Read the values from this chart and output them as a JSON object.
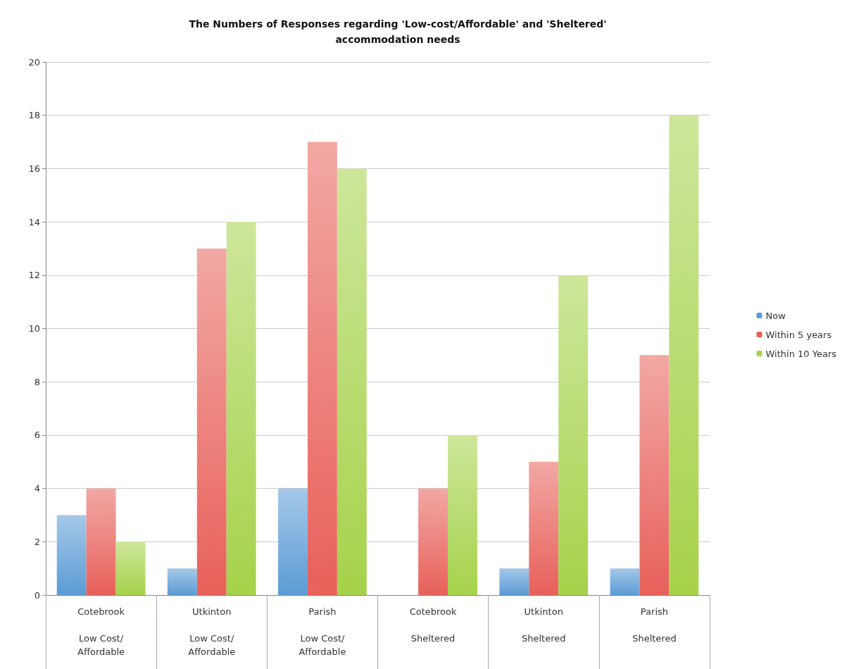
{
  "chart_data": {
    "type": "bar",
    "title": "The Numbers of Responses regarding 'Low-cost/Affordable' and 'Sheltered'\naccommodation needs",
    "categories": [
      "Cotebrook\n\nLow Cost/\nAffordable",
      "Utkinton\n\nLow Cost/\nAffordable",
      "Parish\n\nLow Cost/\nAffordable",
      "Cotebrook\n\nSheltered",
      "Utkinton\n\nSheltered",
      "Parish\n\nSheltered"
    ],
    "series": [
      {
        "name": "Now",
        "color": "#5b9bd5",
        "values": [
          3,
          1,
          4,
          0,
          1,
          1
        ]
      },
      {
        "name": "Within 5 years",
        "color": "#e8605a",
        "values": [
          4,
          13,
          17,
          4,
          5,
          9
        ]
      },
      {
        "name": "Within 10 Years",
        "color": "#a6d24a",
        "values": [
          2,
          14,
          16,
          6,
          12,
          18
        ]
      }
    ],
    "ylim": [
      0,
      20
    ],
    "yticks": [
      0,
      2,
      4,
      6,
      8,
      10,
      12,
      14,
      16,
      18,
      20
    ],
    "grid": "y",
    "legend": "right"
  }
}
